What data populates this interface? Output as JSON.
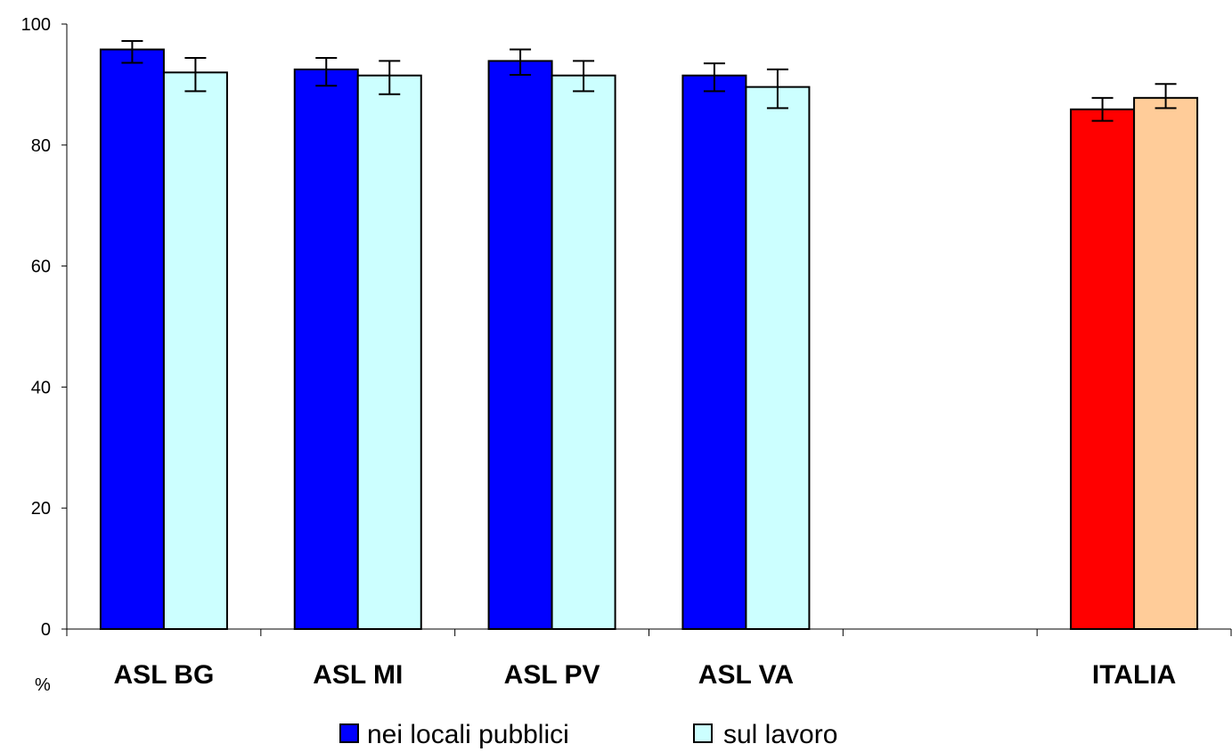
{
  "chart_data": {
    "type": "bar",
    "categories": [
      "ASL BG",
      "ASL MI",
      "ASL PV",
      "ASL VA",
      "",
      "ITALIA"
    ],
    "series": [
      {
        "name": "nei locali pubblici",
        "color": "#0000FF",
        "values": [
          95.8,
          92.5,
          93.9,
          91.5,
          null,
          85.9
        ],
        "err_low": [
          93.6,
          89.8,
          91.6,
          88.9,
          null,
          84.0
        ],
        "err_high": [
          97.2,
          94.4,
          95.8,
          93.5,
          null,
          87.8
        ]
      },
      {
        "name": "sul lavoro",
        "color": "#CCFFFF",
        "values": [
          92.0,
          91.5,
          91.5,
          89.6,
          null,
          87.8
        ],
        "err_low": [
          88.9,
          88.4,
          88.9,
          86.1,
          null,
          86.1
        ],
        "err_high": [
          94.4,
          93.9,
          93.9,
          92.5,
          null,
          90.1
        ]
      }
    ],
    "highlight_colors": {
      "ITALIA": [
        "#FF0000",
        "#FFCC99"
      ]
    },
    "ylabel": "%",
    "ylim": [
      0,
      100
    ],
    "yticks": [
      0,
      20,
      40,
      60,
      80,
      100
    ],
    "grid": false,
    "legend": "bottom"
  }
}
